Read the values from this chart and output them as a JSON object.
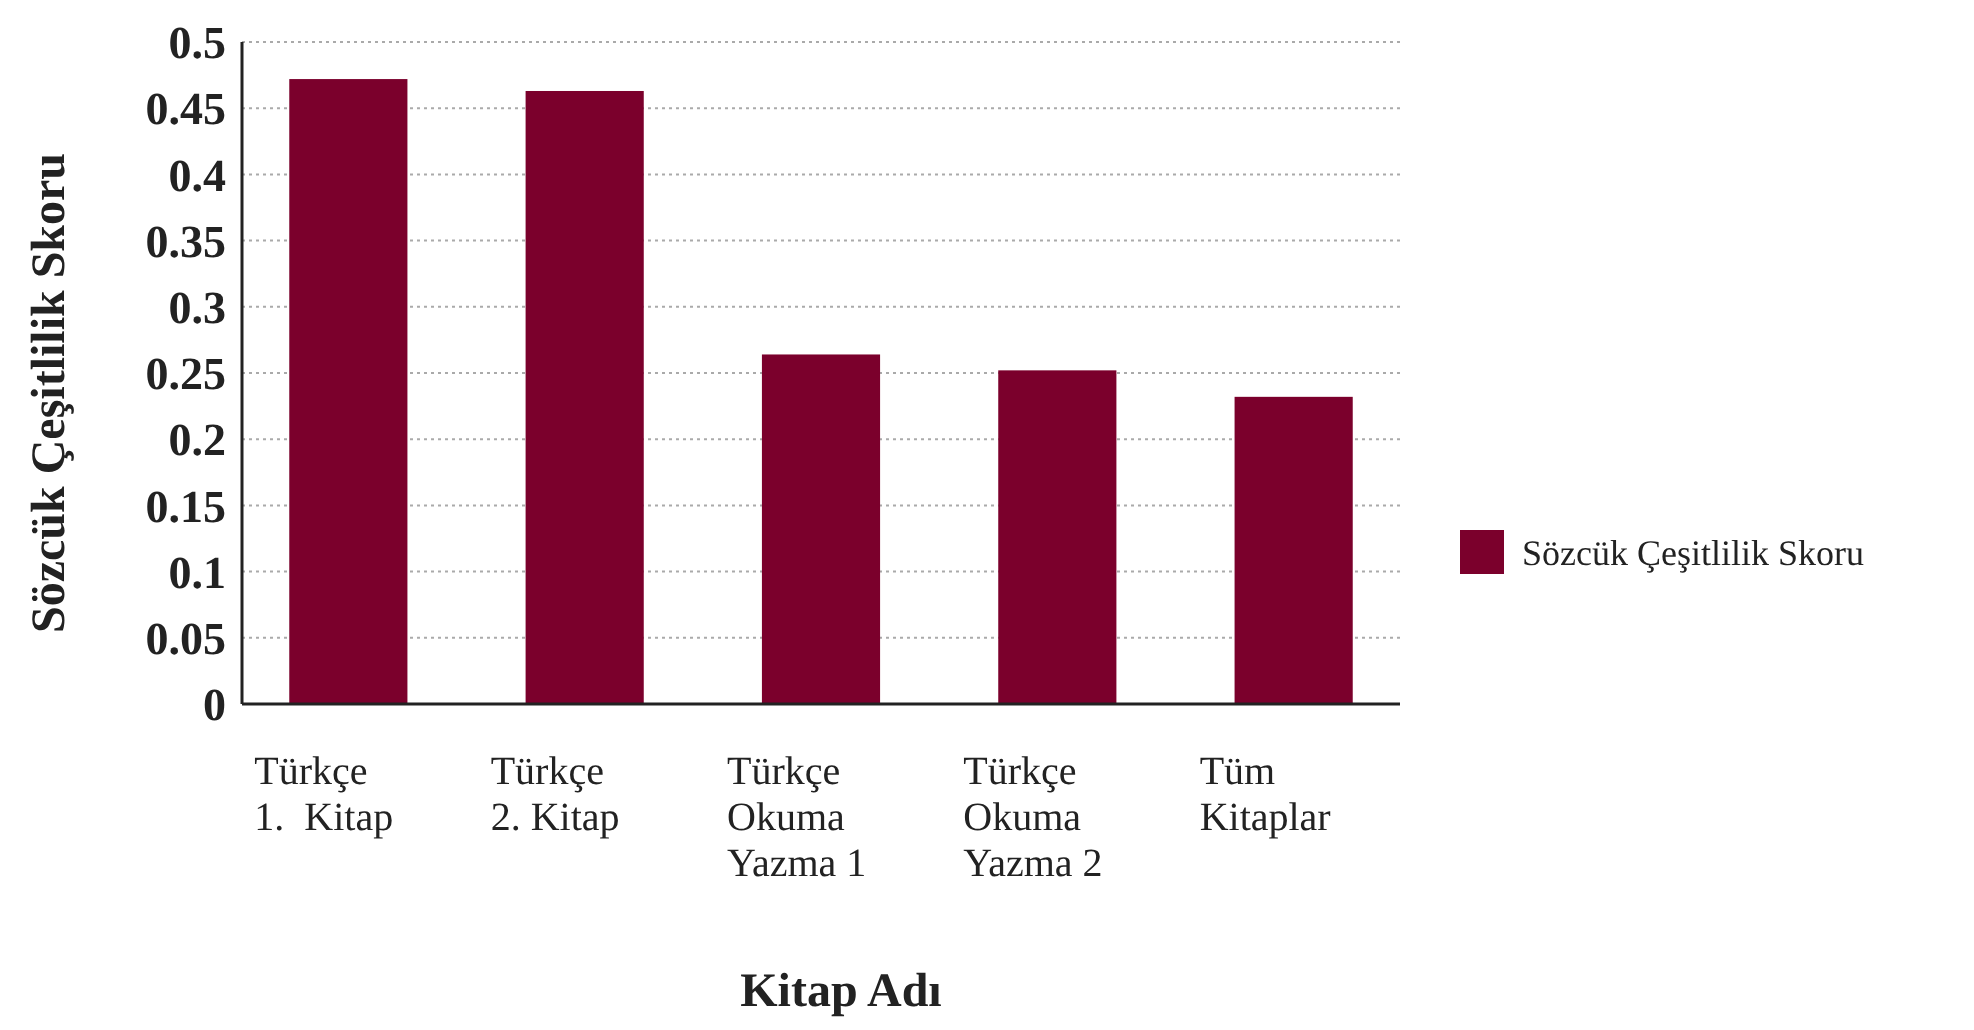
{
  "chart_data": {
    "type": "bar",
    "xlabel": "Kitap Adı",
    "ylabel": "Sözcük Çeşitlilik Skoru",
    "categories": [
      "Türkçe\n1.  Kitap",
      "Türkçe\n2. Kitap",
      "Türkçe\nOkuma\nYazma 1",
      "Türkçe\nOkuma\nYazma 2",
      "Tüm\nKitaplar"
    ],
    "series": [
      {
        "name": "Sözcük Çeşitlilik Skoru",
        "color": "#7b002c",
        "values": [
          0.472,
          0.463,
          0.264,
          0.252,
          0.232
        ]
      }
    ],
    "ylim": [
      0,
      0.5
    ],
    "yticks": [
      0,
      0.05,
      0.1,
      0.15,
      0.2,
      0.25,
      0.3,
      0.35,
      0.4,
      0.45,
      0.5
    ],
    "grid": "y",
    "legend": "right"
  }
}
